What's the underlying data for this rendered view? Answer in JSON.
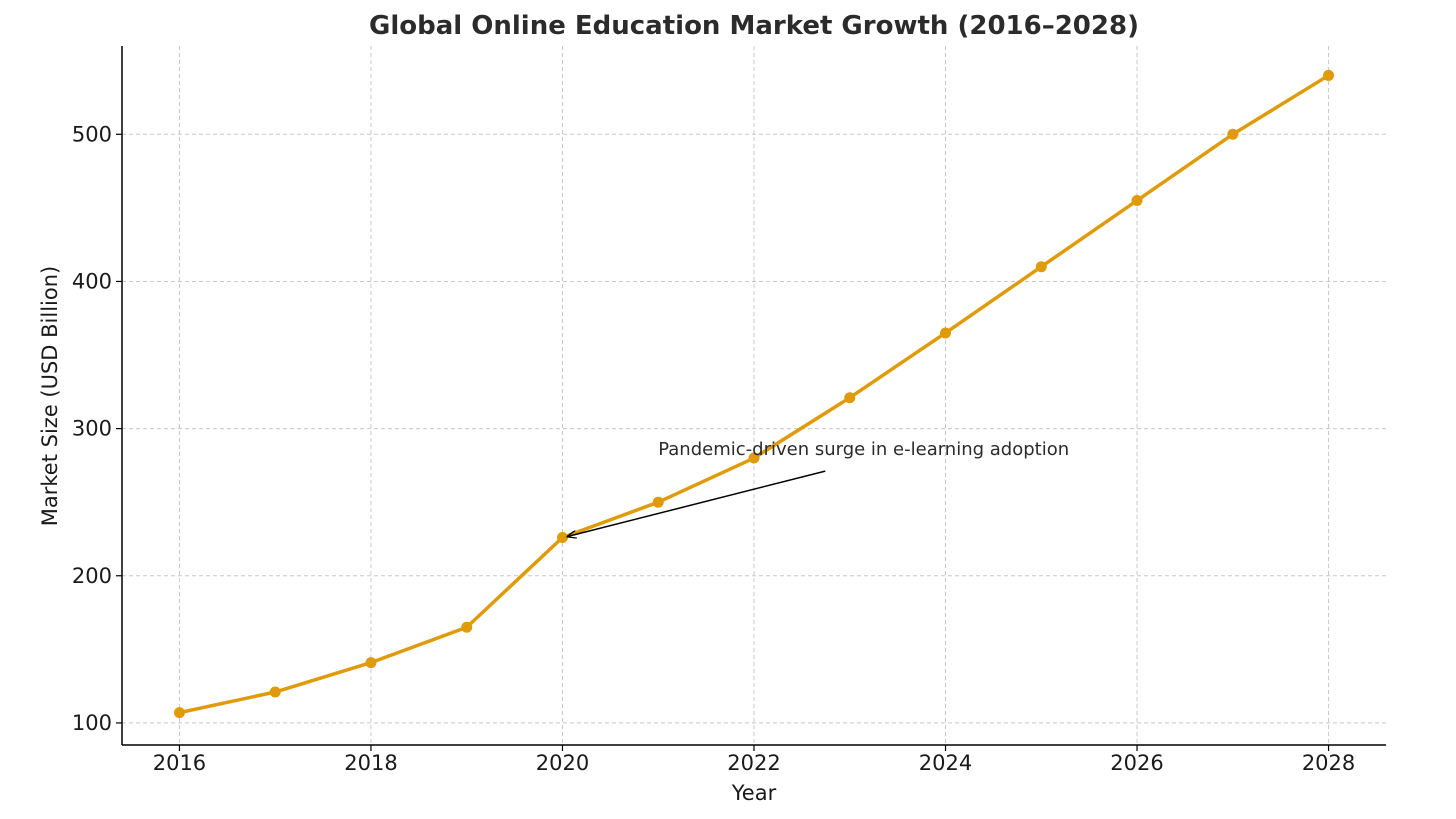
{
  "chart_data": {
    "type": "line",
    "title": "Global Online Education Market Growth (2016–2028)",
    "xlabel": "Year",
    "ylabel": "Market Size (USD Billion)",
    "x": [
      2016,
      2017,
      2018,
      2019,
      2020,
      2021,
      2022,
      2023,
      2024,
      2025,
      2026,
      2027,
      2028
    ],
    "series": [
      {
        "values": [
          107,
          121,
          141,
          165,
          226,
          250,
          280,
          321,
          365,
          410,
          455,
          500,
          540
        ]
      }
    ],
    "xlim": [
      2015.4,
      2028.6
    ],
    "ylim": [
      85,
      560
    ],
    "xticks": [
      2016,
      2018,
      2020,
      2022,
      2024,
      2026,
      2028
    ],
    "yticks": [
      100,
      200,
      300,
      400,
      500
    ],
    "grid": true,
    "legend": "none",
    "color": "#e09b0a",
    "annotation": {
      "text": "Pandemic-driven surge in e-learning adoption",
      "target_x": 2020,
      "target_y": 226,
      "text_x": 2021,
      "text_y": 282
    }
  }
}
